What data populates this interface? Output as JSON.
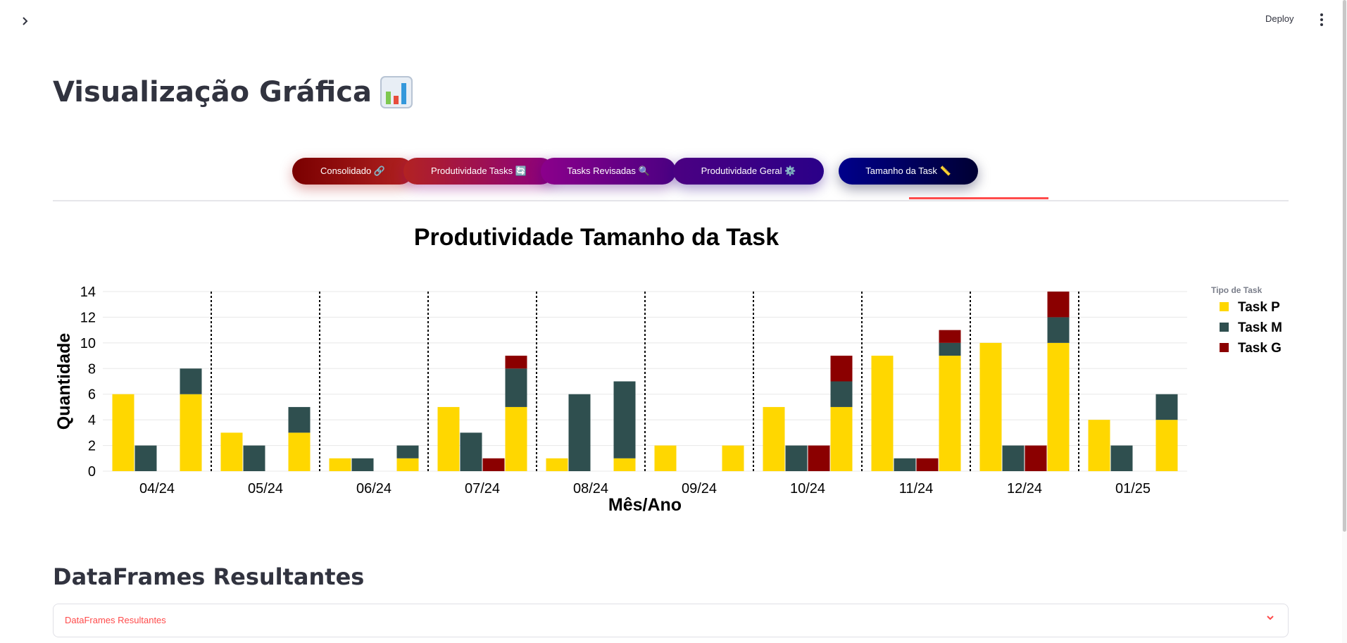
{
  "header": {
    "deploy_label": "Deploy",
    "sidebar_toggle_icon": "chevron-right-icon",
    "menu_icon": "kebab-menu-icon"
  },
  "page": {
    "title": "Visualização Gráfica",
    "title_icon": "bar-chart-icon"
  },
  "tabs": [
    {
      "label": "Consolidado 🔗",
      "color_from": "#7a0000",
      "color_to": "#b22222"
    },
    {
      "label": "Produtividade Tasks 🔄",
      "color_from": "#b22222",
      "color_to": "#8b0080"
    },
    {
      "label": "Tasks Revisadas 🔍",
      "color_from": "#8b008b",
      "color_to": "#4b0082"
    },
    {
      "label": "Produtividade Geral ⚙️",
      "color_from": "#4b0082",
      "color_to": "#2a0088"
    },
    {
      "label": "Tamanho da Task 📏",
      "color_from": "#00008b",
      "color_to": "#000033"
    }
  ],
  "active_tab_index": 4,
  "chart_data": {
    "type": "bar",
    "title": "Produtividade Tamanho da Task",
    "xlabel": "Mês/Ano",
    "ylabel": "Quantidade",
    "ylim": [
      0,
      14
    ],
    "yticks": [
      0,
      2,
      4,
      6,
      8,
      10,
      12,
      14
    ],
    "grid": true,
    "legend_title": "Tipo de Task",
    "legend_position": "top-right",
    "categories": [
      "04/24",
      "05/24",
      "06/24",
      "07/24",
      "08/24",
      "09/24",
      "10/24",
      "11/24",
      "12/24",
      "01/25"
    ],
    "series": [
      {
        "name": "Task P",
        "color": "#ffd700",
        "values": [
          6,
          3,
          1,
          5,
          1,
          2,
          5,
          9,
          10,
          4
        ]
      },
      {
        "name": "Task M",
        "color": "#2f4f4f",
        "values": [
          2,
          2,
          1,
          3,
          6,
          0,
          2,
          1,
          2,
          2
        ]
      },
      {
        "name": "Task G",
        "color": "#8b0000",
        "values": [
          0,
          0,
          0,
          1,
          0,
          0,
          2,
          1,
          2,
          0
        ]
      }
    ],
    "stacked_total_bar": true
  },
  "section": {
    "heading": "DataFrames Resultantes",
    "expander_label": "DataFrames Resultantes",
    "expander_icon": "chevron-down-icon"
  }
}
